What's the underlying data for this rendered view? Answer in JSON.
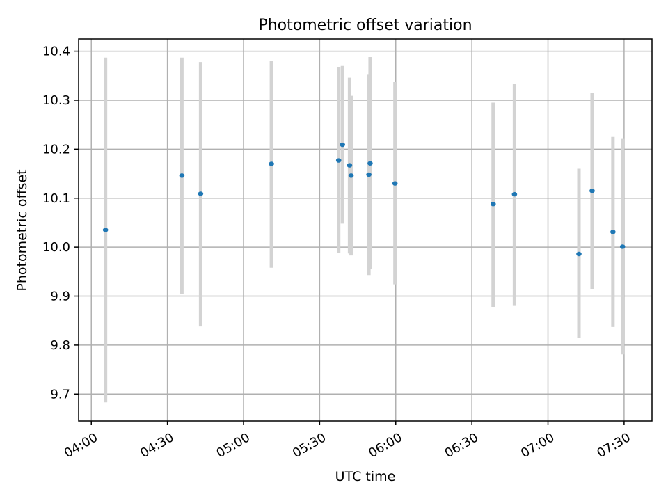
{
  "chart_data": {
    "type": "scatter",
    "title": "Photometric offset variation",
    "xlabel": "UTC time",
    "ylabel": "Photometric offset",
    "xlim_minutes": [
      235,
      461
    ],
    "ylim": [
      9.645,
      10.425
    ],
    "grid": true,
    "x_ticks": [
      {
        "minutes": 240,
        "label": "04:00"
      },
      {
        "minutes": 270,
        "label": "04:30"
      },
      {
        "minutes": 300,
        "label": "05:00"
      },
      {
        "minutes": 330,
        "label": "05:30"
      },
      {
        "minutes": 360,
        "label": "06:00"
      },
      {
        "minutes": 390,
        "label": "06:30"
      },
      {
        "minutes": 420,
        "label": "07:00"
      },
      {
        "minutes": 450,
        "label": "07:30"
      }
    ],
    "y_ticks": [
      9.7,
      9.8,
      9.9,
      10.0,
      10.1,
      10.2,
      10.3,
      10.4
    ],
    "points": [
      {
        "x": 245.6,
        "y": 10.035,
        "ylo": 9.683,
        "yhi": 10.387
      },
      {
        "x": 275.7,
        "y": 10.146,
        "ylo": 9.905,
        "yhi": 10.387
      },
      {
        "x": 283.1,
        "y": 10.109,
        "ylo": 9.838,
        "yhi": 10.378
      },
      {
        "x": 311.0,
        "y": 10.17,
        "ylo": 9.958,
        "yhi": 10.381
      },
      {
        "x": 337.5,
        "y": 10.177,
        "ylo": 9.988,
        "yhi": 10.367
      },
      {
        "x": 339.0,
        "y": 10.209,
        "ylo": 10.048,
        "yhi": 10.37
      },
      {
        "x": 341.8,
        "y": 10.167,
        "ylo": 9.987,
        "yhi": 10.346
      },
      {
        "x": 342.4,
        "y": 10.146,
        "ylo": 9.983,
        "yhi": 10.309
      },
      {
        "x": 349.4,
        "y": 10.148,
        "ylo": 9.943,
        "yhi": 10.352
      },
      {
        "x": 349.9,
        "y": 10.171,
        "ylo": 9.955,
        "yhi": 10.388
      },
      {
        "x": 359.7,
        "y": 10.13,
        "ylo": 9.924,
        "yhi": 10.337
      },
      {
        "x": 398.4,
        "y": 10.088,
        "ylo": 9.878,
        "yhi": 10.295
      },
      {
        "x": 406.8,
        "y": 10.108,
        "ylo": 9.88,
        "yhi": 10.333
      },
      {
        "x": 432.2,
        "y": 9.986,
        "ylo": 9.814,
        "yhi": 10.16
      },
      {
        "x": 437.4,
        "y": 10.115,
        "ylo": 9.915,
        "yhi": 10.315
      },
      {
        "x": 445.6,
        "y": 10.031,
        "ylo": 9.837,
        "yhi": 10.225
      },
      {
        "x": 449.4,
        "y": 10.001,
        "ylo": 9.781,
        "yhi": 10.221
      }
    ]
  }
}
